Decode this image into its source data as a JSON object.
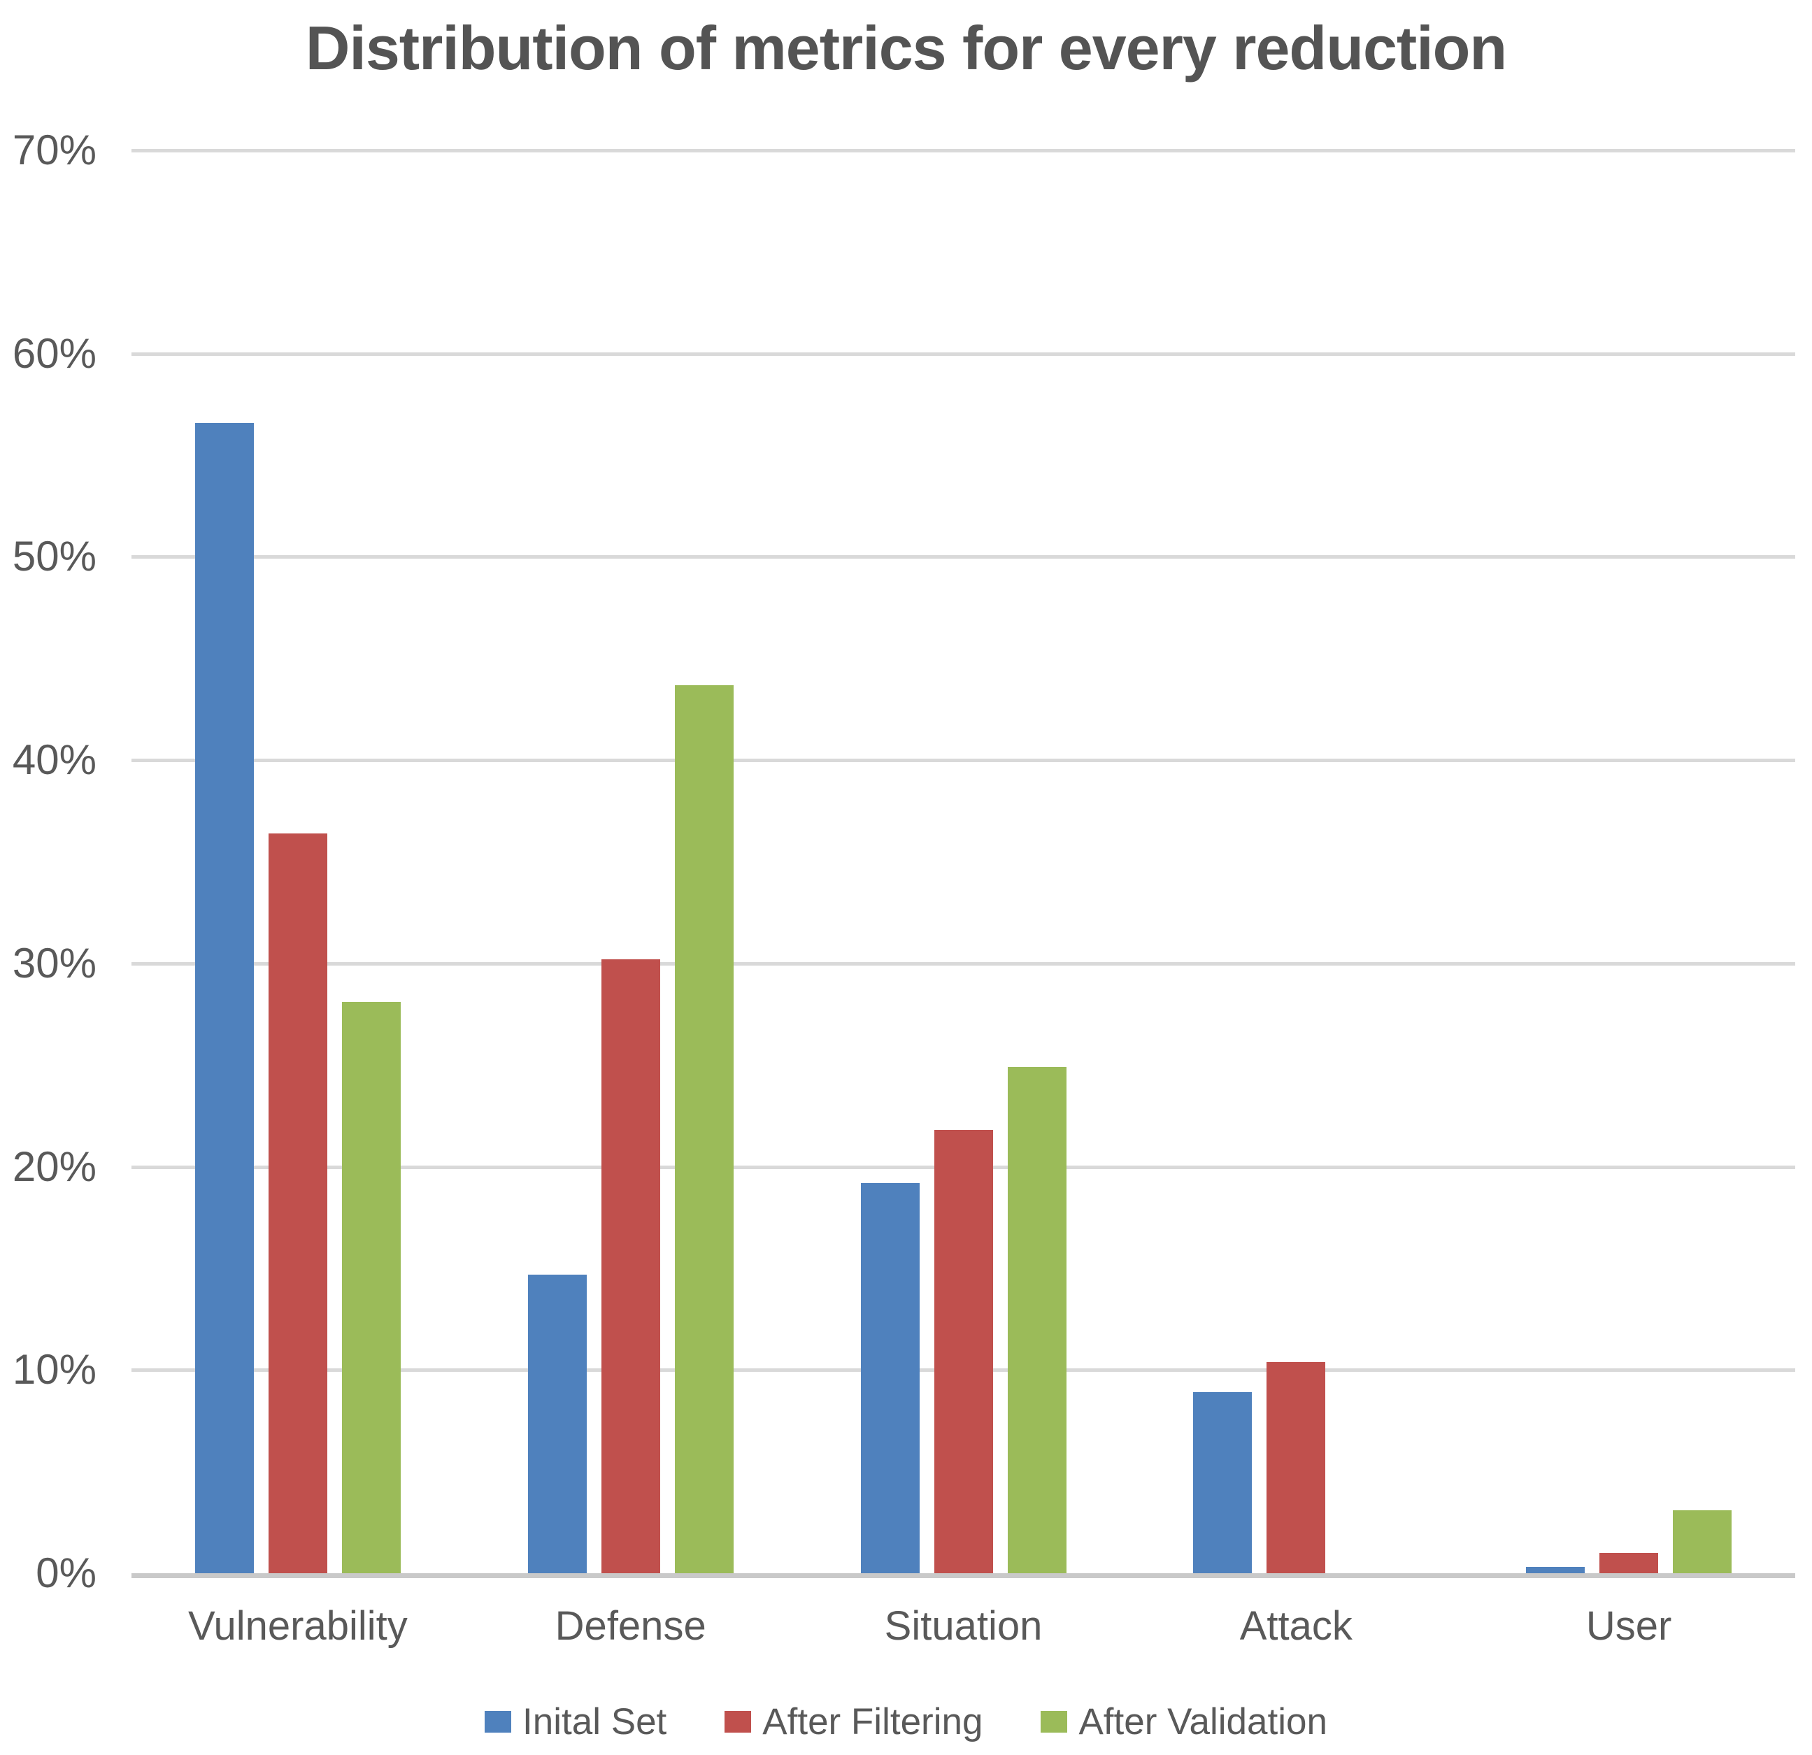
{
  "chart_data": {
    "type": "bar",
    "title": "Distribution of metrics for every reduction",
    "categories": [
      "Vulnerability",
      "Defense",
      "Situation",
      "Attack",
      "User"
    ],
    "series": [
      {
        "name": "Inital Set",
        "color": "#4F81BD",
        "values": [
          56.6,
          14.7,
          19.2,
          8.9,
          0.3
        ]
      },
      {
        "name": "After Filtering",
        "color": "#C0504D",
        "values": [
          36.4,
          30.2,
          21.8,
          10.4,
          1.0
        ]
      },
      {
        "name": "After Validation",
        "color": "#9BBB59",
        "values": [
          28.1,
          43.7,
          24.9,
          0,
          3.1
        ]
      }
    ],
    "xlabel": "",
    "ylabel": "",
    "ylim": [
      0,
      70
    ],
    "y_tick_labels": [
      "70%",
      "60%",
      "50%",
      "40%",
      "30%",
      "20%",
      "10%",
      "0%"
    ],
    "grid": true,
    "gridline_color": "#D9D9D9",
    "axis_line_color": "#C9C9C9",
    "text_color": "#595959",
    "legend_position": "bottom"
  }
}
